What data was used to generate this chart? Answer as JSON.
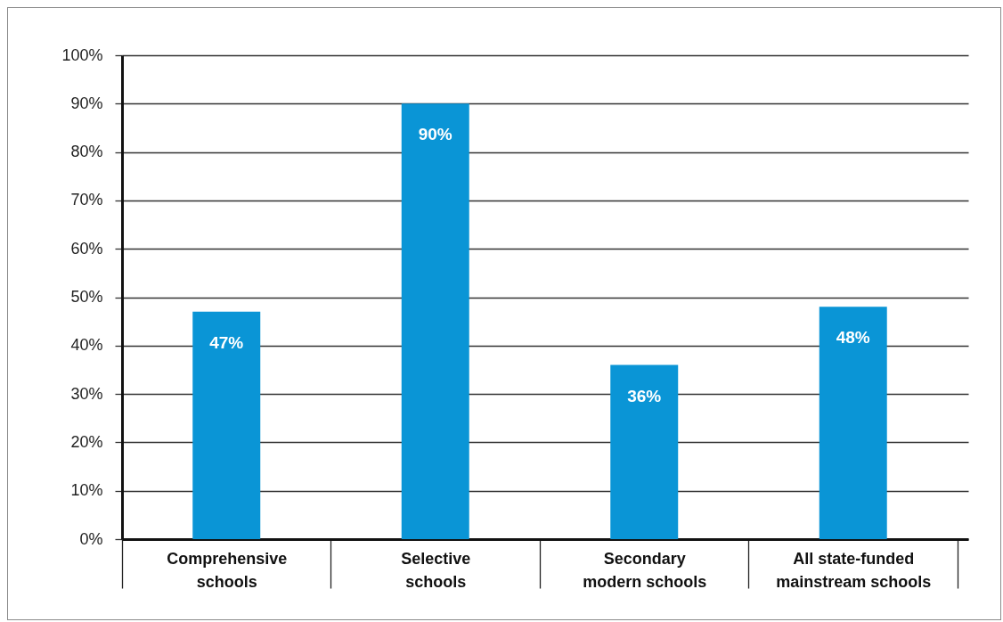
{
  "chart_data": {
    "type": "bar",
    "categories": [
      "Comprehensive schools",
      "Selective schools",
      "Secondary modern schools",
      "All state-funded mainstream schools"
    ],
    "values": [
      47,
      90,
      36,
      48
    ],
    "color": "#0a95d6",
    "value_labels": [
      "47%",
      "90%",
      "36%",
      "48%"
    ],
    "ylim": [
      0,
      100
    ],
    "yticks": [
      {
        "value": 0,
        "label": "0%"
      },
      {
        "value": 10,
        "label": "10%"
      },
      {
        "value": 20,
        "label": "20%"
      },
      {
        "value": 30,
        "label": "30%"
      },
      {
        "value": 40,
        "label": "40%"
      },
      {
        "value": 50,
        "label": "50%"
      },
      {
        "value": 60,
        "label": "60%"
      },
      {
        "value": 70,
        "label": "70%"
      },
      {
        "value": 80,
        "label": "80%"
      },
      {
        "value": 90,
        "label": "90%"
      },
      {
        "value": 100,
        "label": "100%"
      }
    ],
    "grid": "y"
  }
}
